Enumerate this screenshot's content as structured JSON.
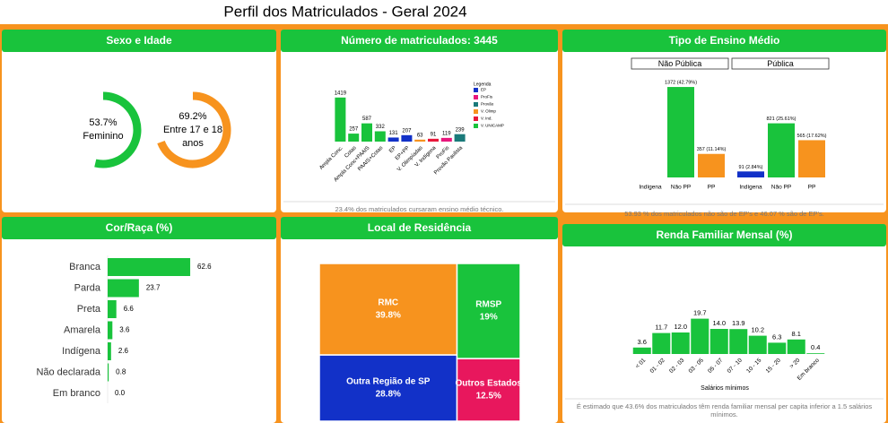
{
  "title": "Perfil dos Matriculados - Geral 2024",
  "chart_data": [
    {
      "type": "donut",
      "title": "Sexo e Idade",
      "categories": [
        "Feminino",
        "Entre 17 e 18 anos"
      ],
      "values": [
        53.7,
        69.2
      ],
      "value_labels": [
        "53.7%",
        "69.2%"
      ],
      "colors": [
        "#19c33c",
        "#f7931e"
      ]
    },
    {
      "type": "bar",
      "title": "Número de matriculados: 3445",
      "categories": [
        "Ampla Conc.",
        "Cotas",
        "Ampla Conc+PAAIS",
        "PAAIS+Cotas",
        "EP",
        "EP+PP",
        "V. Olimpíadas",
        "V. Indígena",
        "ProFis",
        "Provão Paulista"
      ],
      "values": [
        1419,
        257,
        587,
        332,
        131,
        207,
        63,
        91,
        119,
        239
      ],
      "colors": [
        "#19c33c",
        "#19c33c",
        "#19c33c",
        "#19c33c",
        "#1231c8",
        "#1231c8",
        "#f7931e",
        "#e8173a",
        "#e8177d",
        "#1a7a7a"
      ],
      "ylim": [
        0,
        1500
      ],
      "legend": {
        "title": "Legenda",
        "items": [
          {
            "name": "EP",
            "color": "#1231c8"
          },
          {
            "name": "ProFis",
            "color": "#e8177d"
          },
          {
            "name": "Provão",
            "color": "#1a7a7a"
          },
          {
            "name": "V. Olimp",
            "color": "#f7931e"
          },
          {
            "name": "V. Ind.",
            "color": "#e8173a"
          },
          {
            "name": "V. UNICAMP",
            "color": "#19c33c"
          }
        ]
      },
      "note": "23.4% dos matriculados cursaram ensino médio técnico."
    },
    {
      "type": "grouped-bar",
      "title": "Tipo de Ensino Médio",
      "categories": [
        "Não Pública",
        "Pública"
      ],
      "series": [
        {
          "name": "Indígena",
          "color": "#1231c8",
          "values": [
            null,
            91
          ],
          "value_labels": [
            null,
            "91 (2.84%)"
          ]
        },
        {
          "name": "Não PP",
          "color": "#19c33c",
          "values": [
            1372,
            821
          ],
          "value_labels": [
            "1372 (42.79%)",
            "821 (25.61%)"
          ]
        },
        {
          "name": "PP",
          "color": "#f7931e",
          "values": [
            357,
            565
          ],
          "value_labels": [
            "357 (11.14%)",
            "565 (17.62%)"
          ]
        }
      ],
      "ylim": [
        0,
        1400
      ],
      "note": "53.93 % dos matriculados não são de EP's e 46.07 % são de EP's."
    },
    {
      "type": "hbar",
      "title": "Cor/Raça (%)",
      "categories": [
        "Branca",
        "Parda",
        "Preta",
        "Amarela",
        "Indígena",
        "Não declarada",
        "Em branco"
      ],
      "values": [
        62.6,
        23.7,
        6.6,
        3.6,
        2.6,
        0.8,
        0
      ],
      "value_labels": [
        "62.6",
        "23.7",
        "6.6",
        "3.6",
        "2.6",
        "0.8",
        "0.0"
      ],
      "color": "#19c33c",
      "xlim": [
        0,
        68
      ]
    },
    {
      "type": "treemap",
      "title": "Local de Residência",
      "categories": [
        "RMC",
        "Outra Região de SP",
        "RMSP",
        "Outros Estados"
      ],
      "values": [
        39.8,
        28.8,
        19,
        12.5
      ],
      "value_labels": [
        "39.8%",
        "28.8%",
        "19%",
        "12.5%"
      ],
      "colors": [
        "#f7931e",
        "#1231c8",
        "#19c33c",
        "#e8175d"
      ]
    },
    {
      "type": "bar",
      "title": "Renda Familiar Mensal (%)",
      "categories": [
        "< 01",
        "01 - 02",
        "02 - 03",
        "03 - 05",
        "05 - 07",
        "07 - 10",
        "10 - 15",
        "15 - 20",
        "> 20",
        "Em branco"
      ],
      "values": [
        3.6,
        11.7,
        12,
        19.7,
        14,
        13.9,
        10.2,
        6.3,
        8.1,
        0.4
      ],
      "value_labels": [
        "3.6",
        "11.7",
        "12.0",
        "19.7",
        "14.0",
        "13.9",
        "10.2",
        "6.3",
        "8.1",
        "0.4"
      ],
      "color": "#19c33c",
      "ylim": [
        0,
        22
      ],
      "xlabel": "Salários mínimos",
      "note": "É estimado que 43.6% dos matriculados têm renda familiar mensal per capita inferior a 1.5 salários mínimos."
    }
  ]
}
